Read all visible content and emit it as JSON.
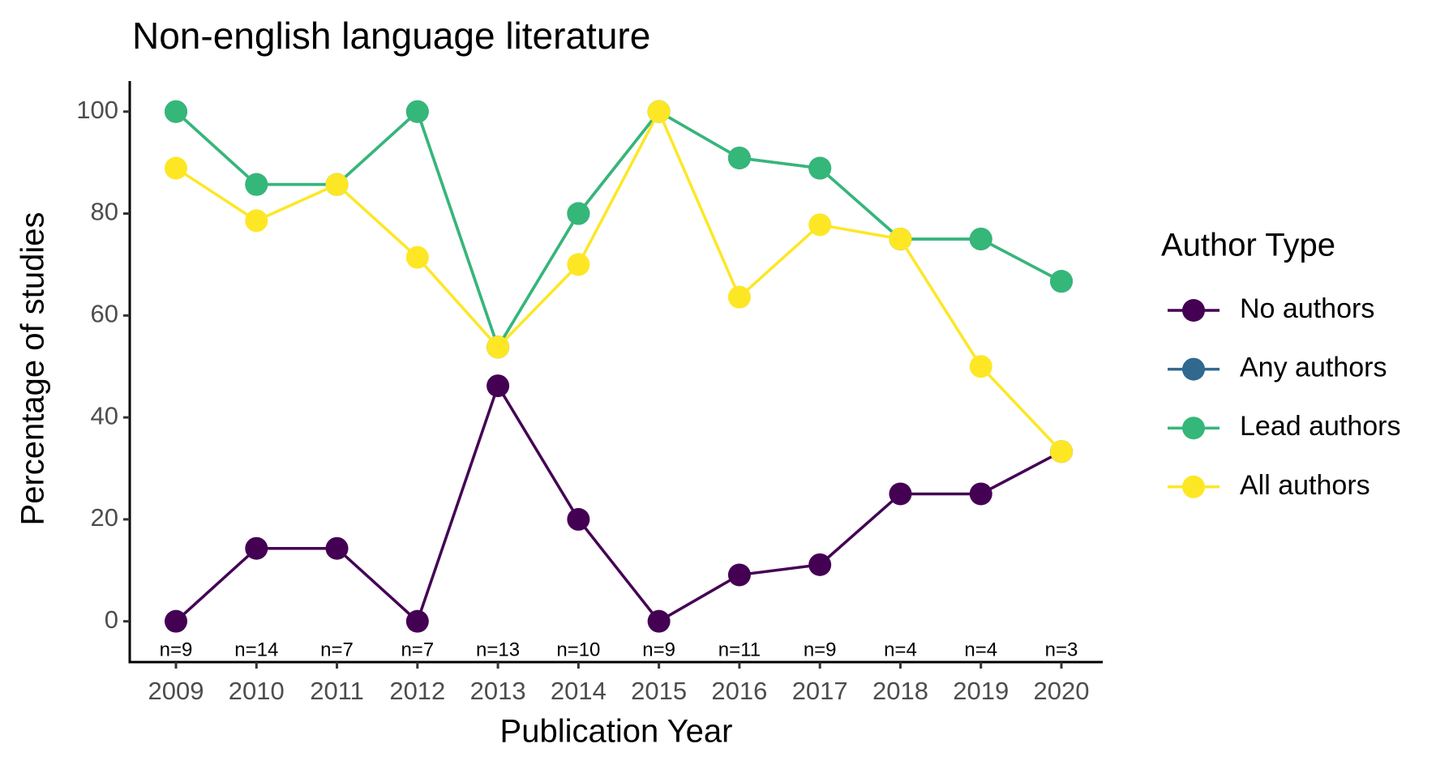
{
  "chart_data": {
    "type": "line",
    "title": "Non-english language literature",
    "x_label": "Publication Year",
    "y_label": "Percentage of studies",
    "categories": [
      "2009",
      "2010",
      "2011",
      "2012",
      "2013",
      "2014",
      "2015",
      "2016",
      "2017",
      "2018",
      "2019",
      "2020"
    ],
    "series": [
      {
        "name": "No authors",
        "color": "#440154",
        "values": [
          0,
          14.3,
          14.3,
          0,
          46.2,
          20,
          0,
          9.1,
          11.1,
          25,
          25,
          33.3
        ]
      },
      {
        "name": "Any authors",
        "color": "#31688e",
        "values": [
          100,
          85.7,
          85.7,
          100,
          53.8,
          80,
          100,
          90.9,
          88.9,
          75,
          75,
          66.7
        ]
      },
      {
        "name": "Lead authors",
        "color": "#35b779",
        "values": [
          100,
          85.7,
          85.7,
          100,
          53.8,
          80,
          100,
          90.9,
          88.9,
          75,
          75,
          66.7
        ]
      },
      {
        "name": "All authors",
        "color": "#fde725",
        "values": [
          88.9,
          78.6,
          85.7,
          71.4,
          53.8,
          70,
          100,
          63.6,
          77.8,
          75,
          50,
          33.3
        ]
      }
    ],
    "annotations": [
      "n=9",
      "n=14",
      "n=7",
      "n=7",
      "n=13",
      "n=10",
      "n=9",
      "n=11",
      "n=9",
      "n=4",
      "n=4",
      "n=3"
    ],
    "legend_title": "Author Type",
    "legend": "right",
    "ylim": [
      -8,
      106
    ],
    "yticks": [
      0,
      20,
      40,
      60,
      80,
      100
    ],
    "grid": false
  }
}
